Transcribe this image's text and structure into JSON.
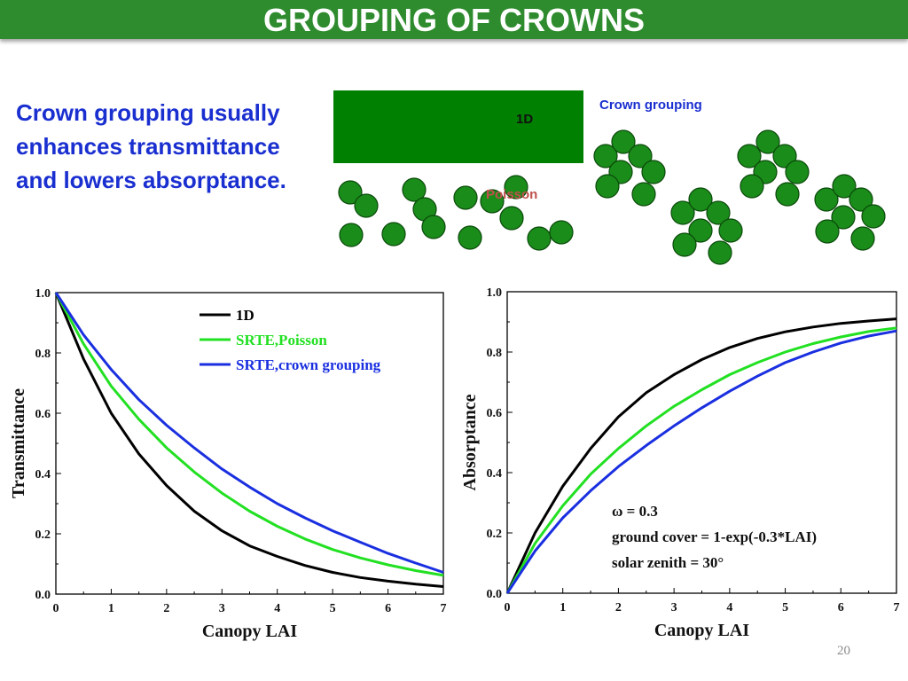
{
  "slide": {
    "title": "GROUPING OF CROWNS",
    "intro": "Crown grouping usually enhances transmittance and lowers absorptance.",
    "page_number": "20"
  },
  "diagram": {
    "label_1d": "1D",
    "label_poisson": "Poisson",
    "label_grouping": "Crown grouping",
    "colors": {
      "canopy": "#008000",
      "crown_fill": "#1a8c1a",
      "crown_stroke": "#0a4a0a"
    }
  },
  "chart_data": [
    {
      "type": "line",
      "xlabel": "Canopy LAI",
      "ylabel": "Transmittance",
      "xlim": [
        0,
        7
      ],
      "ylim": [
        0,
        1
      ],
      "xticks": [
        "0",
        "1",
        "2",
        "3",
        "4",
        "5",
        "6",
        "7"
      ],
      "yticks": [
        "0.0",
        "0.2",
        "0.4",
        "0.6",
        "0.8",
        "1.0"
      ],
      "legend_position": "top-right",
      "x": [
        0,
        0.5,
        1,
        1.5,
        2,
        2.5,
        3,
        3.5,
        4,
        4.5,
        5,
        5.5,
        6,
        6.5,
        7
      ],
      "series": [
        {
          "name": "1D",
          "color": "#000000",
          "legend_color": "#000000",
          "values": [
            1.0,
            0.78,
            0.6,
            0.465,
            0.36,
            0.275,
            0.21,
            0.16,
            0.125,
            0.095,
            0.072,
            0.055,
            0.043,
            0.033,
            0.025
          ]
        },
        {
          "name": "SRTE,Poisson",
          "color": "#22e022",
          "legend_color": "#22e022",
          "values": [
            1.0,
            0.83,
            0.69,
            0.58,
            0.485,
            0.405,
            0.335,
            0.275,
            0.225,
            0.183,
            0.148,
            0.12,
            0.097,
            0.078,
            0.062
          ]
        },
        {
          "name": "SRTE,crown grouping",
          "color": "#1a2fe0",
          "legend_color": "#1a2fe0",
          "values": [
            1.0,
            0.86,
            0.745,
            0.645,
            0.56,
            0.485,
            0.415,
            0.355,
            0.3,
            0.253,
            0.21,
            0.172,
            0.135,
            0.103,
            0.072
          ]
        }
      ]
    },
    {
      "type": "line",
      "xlabel": "Canopy LAI",
      "ylabel": "Absorptance",
      "xlim": [
        0,
        7
      ],
      "ylim": [
        0,
        1
      ],
      "xticks": [
        "0",
        "1",
        "2",
        "3",
        "4",
        "5",
        "6",
        "7"
      ],
      "yticks": [
        "0.0",
        "0.2",
        "0.4",
        "0.6",
        "0.8",
        "1.0"
      ],
      "annotations": [
        "ω = 0.3",
        "ground cover = 1-exp(-0.3*LAI)",
        "solar zenith = 30°"
      ],
      "x": [
        0,
        0.5,
        1,
        1.5,
        2,
        2.5,
        3,
        3.5,
        4,
        4.5,
        5,
        5.5,
        6,
        6.5,
        7
      ],
      "series": [
        {
          "name": "1D",
          "color": "#000000",
          "values": [
            0.0,
            0.2,
            0.355,
            0.48,
            0.585,
            0.665,
            0.725,
            0.775,
            0.815,
            0.845,
            0.867,
            0.883,
            0.895,
            0.903,
            0.91
          ]
        },
        {
          "name": "SRTE,Poisson",
          "color": "#22e022",
          "values": [
            0.0,
            0.165,
            0.29,
            0.395,
            0.48,
            0.555,
            0.62,
            0.675,
            0.725,
            0.765,
            0.8,
            0.828,
            0.85,
            0.868,
            0.88
          ]
        },
        {
          "name": "SRTE,crown grouping",
          "color": "#1a2fe0",
          "values": [
            0.0,
            0.14,
            0.25,
            0.34,
            0.42,
            0.49,
            0.555,
            0.615,
            0.67,
            0.72,
            0.765,
            0.8,
            0.83,
            0.853,
            0.87
          ]
        }
      ]
    }
  ]
}
